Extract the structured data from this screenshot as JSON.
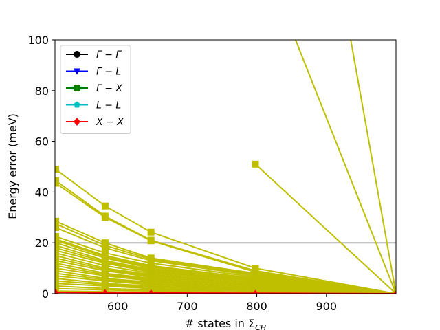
{
  "chart_data": {
    "type": "line",
    "xlabel": "# states in Σ",
    "xlabel_sub": "CH",
    "ylabel": "Energy error (meV)",
    "xlim": [
      510,
      1000
    ],
    "ylim": [
      0,
      100
    ],
    "xticks": [
      600,
      700,
      800,
      900
    ],
    "yticks": [
      0,
      20,
      40,
      60,
      80,
      100
    ],
    "x": [
      511,
      582,
      648,
      798,
      1000
    ],
    "reference_line": {
      "y": 20,
      "color": "#b0b0b0"
    },
    "legend": {
      "position": "upper-left",
      "entries": [
        {
          "label": "Γ − Γ",
          "color": "#000000",
          "marker": "circle"
        },
        {
          "label": "Γ − L",
          "color": "#0000ff",
          "marker": "triangle-down"
        },
        {
          "label": "Γ − X",
          "color": "#008000",
          "marker": "square"
        },
        {
          "label": "L − L",
          "color": "#00bfbf",
          "marker": "pentagon"
        },
        {
          "label": "X − X",
          "color": "#ff0000",
          "marker": "diamond"
        }
      ]
    },
    "series_color": "#bfbf00",
    "series": [
      {
        "values": [
          null,
          null,
          null,
          140,
          0
        ]
      },
      {
        "values": [
          null,
          null,
          null,
          51,
          0
        ]
      },
      {
        "values": [
          49,
          34.5,
          24.2,
          10,
          0
        ]
      },
      {
        "values": [
          44.5,
          30.5,
          21,
          9,
          0
        ]
      },
      {
        "values": [
          43.5,
          30,
          20.8,
          8.5,
          0
        ]
      },
      {
        "values": [
          28.5,
          20,
          14,
          8,
          0
        ]
      },
      {
        "values": [
          27.5,
          19,
          13.5,
          7.5,
          0
        ]
      },
      {
        "values": [
          26,
          18,
          13,
          7,
          0
        ]
      },
      {
        "values": [
          22.5,
          16,
          12,
          6.5,
          0
        ]
      },
      {
        "values": [
          21.5,
          15,
          11,
          6,
          0
        ]
      },
      {
        "values": [
          21,
          14.5,
          10.5,
          6,
          0
        ]
      },
      {
        "values": [
          20,
          14,
          10,
          5.5,
          0
        ]
      },
      {
        "values": [
          19,
          13,
          9.5,
          5.5,
          0
        ]
      },
      {
        "values": [
          18,
          12.5,
          9,
          5,
          0
        ]
      },
      {
        "values": [
          17,
          12,
          8.5,
          5,
          0
        ]
      },
      {
        "values": [
          16,
          11,
          8,
          4.5,
          0
        ]
      },
      {
        "values": [
          15,
          10,
          7.5,
          4,
          0
        ]
      },
      {
        "values": [
          14,
          9.5,
          7,
          4,
          0
        ]
      },
      {
        "values": [
          13,
          9,
          6.5,
          3.5,
          0
        ]
      },
      {
        "values": [
          12,
          8,
          6,
          3,
          0
        ]
      },
      {
        "values": [
          11,
          7.5,
          5.5,
          3,
          0
        ]
      },
      {
        "values": [
          10,
          7,
          5,
          2.5,
          0
        ]
      },
      {
        "values": [
          9,
          6,
          4.5,
          2.5,
          0
        ]
      },
      {
        "values": [
          8,
          5.5,
          4,
          2,
          0
        ]
      },
      {
        "values": [
          7,
          5,
          3.5,
          2,
          0
        ]
      },
      {
        "values": [
          6,
          4,
          3,
          1.5,
          0
        ]
      },
      {
        "values": [
          5,
          3.5,
          2.5,
          1.5,
          0
        ]
      },
      {
        "values": [
          4,
          3,
          2,
          1,
          0
        ]
      },
      {
        "values": [
          3,
          2,
          1.5,
          1,
          0
        ]
      },
      {
        "values": [
          2,
          1.5,
          1,
          0.5,
          0
        ]
      },
      {
        "values": [
          1,
          0.8,
          0.5,
          0.3,
          0
        ]
      }
    ],
    "steep_series": [
      {
        "points": [
          [
            935,
            100
          ],
          [
            1000,
            0
          ]
        ]
      }
    ],
    "bottom_series": {
      "values": [
        0.5,
        0.4,
        0.3,
        0.2,
        0
      ],
      "color": "#ff0000"
    }
  }
}
